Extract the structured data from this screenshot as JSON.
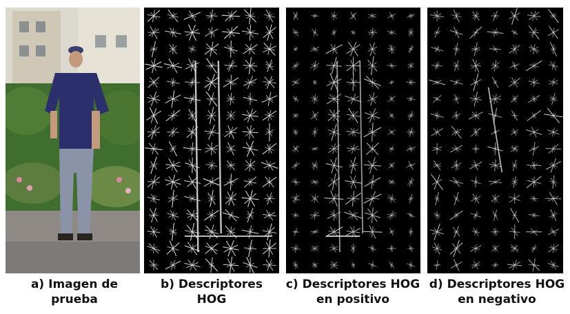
{
  "panels": [
    {
      "id": "test-image",
      "caption_line1": "a) Imagen de",
      "caption_line2": "prueba"
    },
    {
      "id": "hog-descriptors",
      "caption_line1": "b) Descriptores",
      "caption_line2": "HOG"
    },
    {
      "id": "hog-positive",
      "caption_line1": "c)  Descriptores HOG",
      "caption_line2": "en positivo"
    },
    {
      "id": "hog-negative",
      "caption_line1": "d) Descriptores HOG",
      "caption_line2": "en negativo"
    }
  ],
  "colors": {
    "background": "#ffffff",
    "panel_bg": "#000000",
    "hog_stroke": "#e8e8e8",
    "shirt": "#2b2f6b",
    "jeans": "#8a93a8",
    "foliage": "#3f6e2e",
    "pavement": "#8f8a86"
  }
}
